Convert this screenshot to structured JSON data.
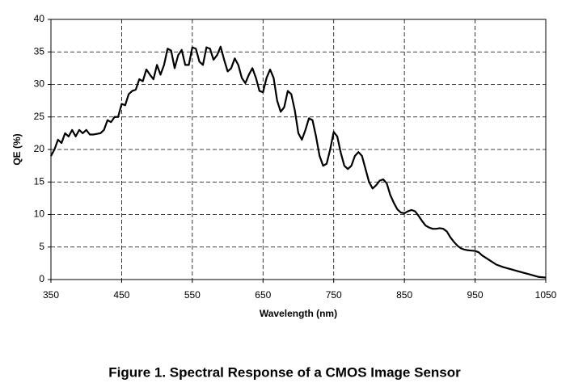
{
  "chart_data": {
    "type": "line",
    "title": "Figure 1.  Spectral Response of a CMOS Image Sensor",
    "x_label": "Wavelength (nm)",
    "y_label": "QE (%)",
    "xlim": [
      350,
      1050
    ],
    "ylim": [
      0,
      40
    ],
    "xticks": [
      350,
      450,
      550,
      650,
      750,
      850,
      950,
      1050
    ],
    "yticks": [
      0,
      5,
      10,
      15,
      20,
      25,
      30,
      35,
      40
    ],
    "grid": true,
    "x": [
      350,
      355,
      360,
      365,
      370,
      375,
      380,
      385,
      390,
      395,
      400,
      405,
      410,
      415,
      420,
      425,
      430,
      435,
      440,
      445,
      450,
      455,
      460,
      465,
      470,
      475,
      480,
      485,
      490,
      495,
      500,
      505,
      510,
      515,
      520,
      525,
      530,
      535,
      540,
      545,
      550,
      555,
      560,
      565,
      570,
      575,
      580,
      585,
      590,
      595,
      600,
      605,
      610,
      615,
      620,
      625,
      630,
      635,
      640,
      645,
      650,
      655,
      660,
      665,
      670,
      675,
      680,
      685,
      690,
      695,
      700,
      705,
      710,
      715,
      720,
      725,
      730,
      735,
      740,
      745,
      750,
      755,
      760,
      765,
      770,
      775,
      780,
      785,
      790,
      795,
      800,
      805,
      810,
      815,
      820,
      825,
      830,
      835,
      840,
      845,
      850,
      855,
      860,
      865,
      870,
      875,
      880,
      885,
      890,
      895,
      900,
      905,
      910,
      915,
      920,
      925,
      930,
      935,
      940,
      945,
      950,
      955,
      960,
      970,
      980,
      990,
      1000,
      1010,
      1020,
      1030,
      1040,
      1050
    ],
    "series": [
      {
        "name": "QE",
        "color": "#000000",
        "values": [
          19,
          20,
          21.5,
          21,
          22.5,
          22,
          23,
          22,
          23,
          22.5,
          23,
          22.3,
          22.3,
          22.4,
          22.5,
          23,
          24.5,
          24.2,
          25,
          25,
          27,
          26.8,
          28.5,
          29,
          29.2,
          30.8,
          30.5,
          32.3,
          31.5,
          30.8,
          33,
          31.5,
          33,
          35.5,
          35.2,
          32.5,
          34.5,
          35.3,
          33,
          33,
          35.7,
          35.5,
          33.5,
          33,
          35.7,
          35.5,
          33.8,
          34.5,
          35.8,
          33.8,
          32,
          32.5,
          34,
          33,
          31,
          30.2,
          31.5,
          32.5,
          31,
          29,
          28.8,
          31,
          32.3,
          31,
          27.5,
          25.8,
          26.5,
          29,
          28.5,
          26,
          22.5,
          21.5,
          23,
          24.8,
          24.5,
          22,
          19,
          17.5,
          17.8,
          20,
          22.7,
          22,
          19.5,
          17.5,
          17,
          17.5,
          19,
          19.6,
          19,
          17,
          15,
          14,
          14.5,
          15.2,
          15.4,
          14.8,
          13,
          11.8,
          10.8,
          10.3,
          10.2,
          10.5,
          10.7,
          10.5,
          9.8,
          9,
          8.3,
          8,
          7.8,
          7.8,
          7.9,
          7.8,
          7.4,
          6.5,
          5.8,
          5.2,
          4.8,
          4.6,
          4.5,
          4.45,
          4.4,
          4.2,
          3.7,
          3,
          2.3,
          1.9,
          1.6,
          1.3,
          1,
          0.7,
          0.4,
          0.3
        ]
      }
    ]
  }
}
